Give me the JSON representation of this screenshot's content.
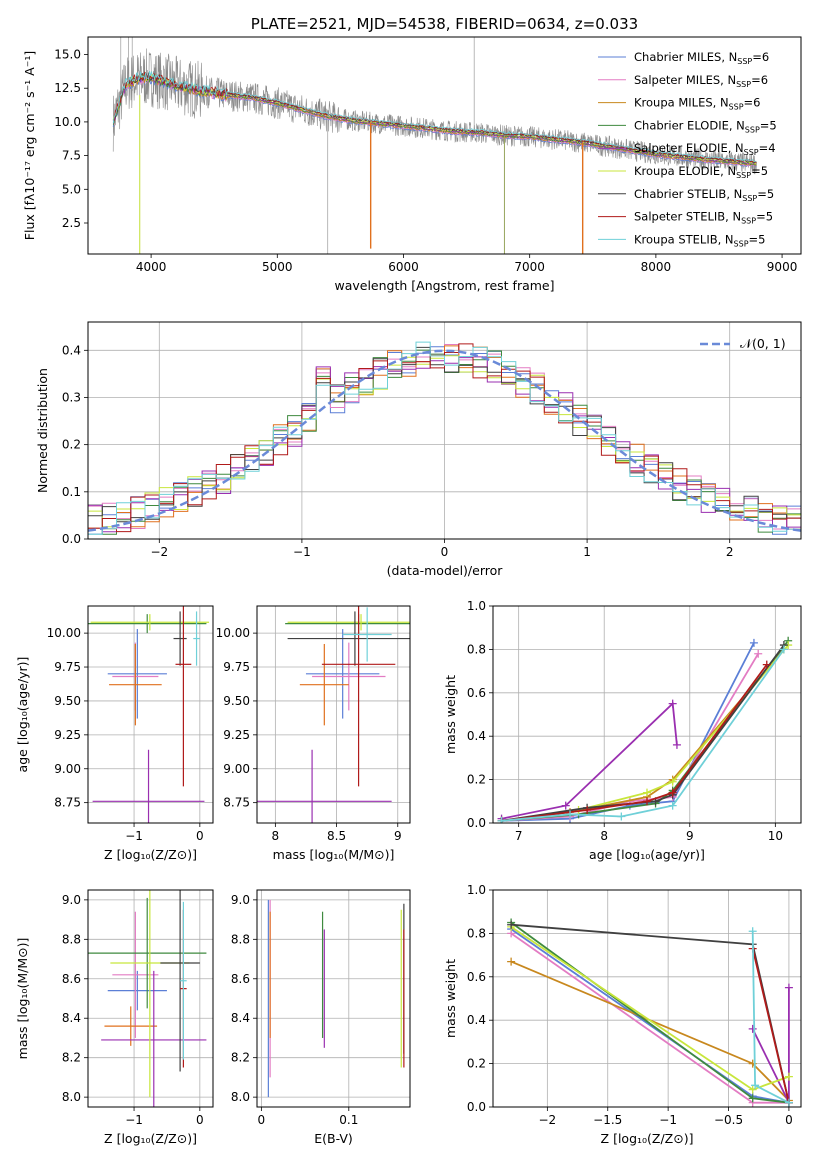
{
  "chart_data": [
    {
      "id": "spectrum",
      "type": "line",
      "title": "PLATE=2521, MJD=54538, FIBERID=0634, z=0.033",
      "xlabel": "wavelength [Angstrom, rest frame]",
      "ylabel": "Flux [fλ10⁻¹⁷ erg cm⁻² s⁻¹ A⁻¹]",
      "xlim": [
        3500,
        9150
      ],
      "ylim": [
        0.2,
        16.3
      ],
      "xticks": [
        4000,
        5000,
        6000,
        7000,
        8000,
        9000
      ],
      "yticks": [
        2.5,
        5.0,
        7.5,
        10.0,
        12.5,
        15.0
      ],
      "grid": false,
      "legend_position": "top-right",
      "legend": [
        {
          "name": "Chabrier MILES",
          "nssp": "6",
          "color": "#5b7fd6"
        },
        {
          "name": "Salpeter MILES",
          "nssp": "6",
          "color": "#e37cc3"
        },
        {
          "name": "Kroupa MILES",
          "nssp": "6",
          "color": "#c8881e"
        },
        {
          "name": "Chabrier ELODIE",
          "nssp": "5",
          "color": "#3f8a3f"
        },
        {
          "name": "Salpeter ELODIE",
          "nssp": "4",
          "color": "#9a2fb0"
        },
        {
          "name": "Kroupa ELODIE",
          "nssp": "5",
          "color": "#c8e63c"
        },
        {
          "name": "Chabrier STELIB",
          "nssp": "5",
          "color": "#404040"
        },
        {
          "name": "Salpeter STELIB",
          "nssp": "5",
          "color": "#b01a1a"
        },
        {
          "name": "Kroupa STELIB",
          "nssp": "5",
          "color": "#6fd0d8"
        }
      ],
      "model_x": [
        3700,
        3800,
        3900,
        4000,
        4200,
        4400,
        4600,
        4800,
        5000,
        5200,
        5400,
        5600,
        5800,
        6000,
        6200,
        6400,
        6600,
        6800,
        7000,
        7200,
        7400,
        7600,
        7800,
        8000,
        8200,
        8400,
        8600,
        8800
      ],
      "model_y": [
        10.0,
        12.8,
        13.2,
        13.3,
        12.7,
        12.3,
        12.0,
        11.8,
        11.4,
        10.9,
        10.4,
        10.1,
        9.9,
        9.7,
        9.5,
        9.3,
        9.2,
        9.0,
        8.9,
        8.7,
        8.5,
        8.2,
        7.9,
        7.6,
        7.4,
        7.2,
        7.05,
        6.9
      ]
    },
    {
      "id": "residuals",
      "type": "line",
      "xlabel": "(data-model)/error",
      "ylabel": "Normed distribution",
      "xlim": [
        -2.5,
        2.5
      ],
      "ylim": [
        0,
        0.46
      ],
      "xticks": [
        -2,
        -1,
        0,
        1,
        2
      ],
      "yticks": [
        0.0,
        0.1,
        0.2,
        0.3,
        0.4
      ],
      "grid": true,
      "legend_position": "top-right",
      "legend": [
        {
          "name": "𝒩(0, 1)",
          "color": "#6a8ad8"
        }
      ]
    },
    {
      "id": "age-vs-Z",
      "type": "scatter",
      "xlabel": "Z [log₁₀(Z/Z⊙)]",
      "ylabel": "age  [log₁₀(age/yr)]",
      "xlim": [
        -1.7,
        0.2
      ],
      "ylim": [
        8.6,
        10.2
      ],
      "xticks": [
        -1,
        0
      ],
      "yticks": [
        8.75,
        9.0,
        9.25,
        9.5,
        9.75,
        10.0
      ],
      "grid": true,
      "points": [
        {
          "x": -0.95,
          "y": 9.7,
          "xerr": 0.45,
          "yerr": 0.33
        },
        {
          "x": -0.98,
          "y": 9.68,
          "xerr": 0.35,
          "yerr": 0.25
        },
        {
          "x": -0.98,
          "y": 9.62,
          "xerr": 0.4,
          "yerr": 0.3
        },
        {
          "x": -0.8,
          "y": 10.07,
          "xerr": 0.9,
          "yerr": 0.07
        },
        {
          "x": -0.78,
          "y": 8.76,
          "xerr": 0.85,
          "yerr": 0.38
        },
        {
          "x": -0.76,
          "y": 10.08,
          "xerr": 0.9,
          "yerr": 0.06
        },
        {
          "x": -0.3,
          "y": 9.96,
          "xerr": 0.1,
          "yerr": 0.2
        },
        {
          "x": -0.25,
          "y": 9.77,
          "xerr": 0.12,
          "yerr": 0.9
        },
        {
          "x": -0.05,
          "y": 9.96,
          "xerr": 0.05,
          "yerr": 0.2
        }
      ]
    },
    {
      "id": "age-vs-mass",
      "type": "scatter",
      "xlabel": "mass [log₁₀(M/M⊙)]",
      "ylabel": "",
      "xlim": [
        7.85,
        9.1
      ],
      "ylim": [
        8.6,
        10.2
      ],
      "xticks": [
        8.0,
        8.5,
        9.0
      ],
      "yticks": [
        8.75,
        9.0,
        9.25,
        9.5,
        9.75,
        10.0
      ],
      "grid": true,
      "points": [
        {
          "x": 8.55,
          "y": 9.7,
          "xerr": 0.3,
          "yerr": 0.33
        },
        {
          "x": 8.6,
          "y": 9.68,
          "xerr": 0.3,
          "yerr": 0.25
        },
        {
          "x": 8.4,
          "y": 9.62,
          "xerr": 0.2,
          "yerr": 0.3
        },
        {
          "x": 8.68,
          "y": 10.07,
          "xerr": 0.6,
          "yerr": 0.07
        },
        {
          "x": 8.3,
          "y": 8.76,
          "xerr": 0.65,
          "yerr": 0.38
        },
        {
          "x": 8.7,
          "y": 10.08,
          "xerr": 0.6,
          "yerr": 0.06
        },
        {
          "x": 8.65,
          "y": 9.96,
          "xerr": 0.55,
          "yerr": 0.2
        },
        {
          "x": 8.68,
          "y": 9.77,
          "xerr": 0.3,
          "yerr": 0.9
        },
        {
          "x": 8.75,
          "y": 9.99,
          "xerr": 0.2,
          "yerr": 0.2
        }
      ]
    },
    {
      "id": "weight-vs-age",
      "type": "line",
      "xlabel": "age  [log₁₀(age/yr)]",
      "ylabel": "mass weight",
      "xlim": [
        6.7,
        10.3
      ],
      "ylim": [
        0.0,
        1.0
      ],
      "xticks": [
        7,
        8,
        9,
        10
      ],
      "yticks": [
        0.0,
        0.2,
        0.4,
        0.6,
        0.8,
        1.0
      ],
      "grid": true,
      "series": [
        {
          "color": "#5b7fd6",
          "x": [
            6.8,
            7.6,
            8.3,
            8.8,
            9.75
          ],
          "y": [
            0.01,
            0.02,
            0.08,
            0.1,
            0.83
          ]
        },
        {
          "color": "#e37cc3",
          "x": [
            6.8,
            7.6,
            8.3,
            8.8,
            9.8
          ],
          "y": [
            0.01,
            0.03,
            0.1,
            0.12,
            0.78
          ]
        },
        {
          "color": "#c8881e",
          "x": [
            6.8,
            7.6,
            8.5,
            8.8,
            10.1
          ],
          "y": [
            0.01,
            0.05,
            0.12,
            0.2,
            0.8
          ]
        },
        {
          "color": "#3f8a3f",
          "x": [
            6.8,
            7.7,
            8.6,
            8.8,
            10.15
          ],
          "y": [
            0.01,
            0.04,
            0.09,
            0.15,
            0.84
          ]
        },
        {
          "color": "#9a2fb0",
          "x": [
            6.8,
            7.55,
            8.8,
            8.85
          ],
          "y": [
            0.02,
            0.08,
            0.55,
            0.36
          ]
        },
        {
          "color": "#c8e63c",
          "x": [
            6.8,
            7.7,
            8.5,
            8.8,
            10.15
          ],
          "y": [
            0.01,
            0.06,
            0.14,
            0.19,
            0.82
          ]
        },
        {
          "color": "#404040",
          "x": [
            6.8,
            7.8,
            8.6,
            8.8,
            10.1
          ],
          "y": [
            0.01,
            0.07,
            0.1,
            0.13,
            0.82
          ]
        },
        {
          "color": "#b01a1a",
          "x": [
            6.8,
            7.8,
            8.5,
            8.8,
            9.9
          ],
          "y": [
            0.01,
            0.06,
            0.1,
            0.14,
            0.73
          ]
        },
        {
          "color": "#6fd0d8",
          "x": [
            6.8,
            7.6,
            8.2,
            8.8,
            10.1
          ],
          "y": [
            0.01,
            0.04,
            0.03,
            0.08,
            0.8
          ]
        }
      ]
    },
    {
      "id": "mass-vs-Z",
      "type": "scatter",
      "xlabel": "Z [log₁₀(Z/Z⊙)]",
      "ylabel": "mass [log₁₀(M/M⊙)]",
      "xlim": [
        -1.7,
        0.2
      ],
      "ylim": [
        7.95,
        9.05
      ],
      "xticks": [
        -1,
        0
      ],
      "yticks": [
        8.0,
        8.2,
        8.4,
        8.6,
        8.8,
        9.0
      ],
      "grid": true,
      "points": [
        {
          "x": -0.95,
          "y": 8.54,
          "xerr": 0.45,
          "yerr": 0.1
        },
        {
          "x": -0.98,
          "y": 8.62,
          "xerr": 0.35,
          "yerr": 0.32
        },
        {
          "x": -1.05,
          "y": 8.36,
          "xerr": 0.4,
          "yerr": 0.1
        },
        {
          "x": -0.8,
          "y": 8.73,
          "xerr": 0.9,
          "yerr": 0.28
        },
        {
          "x": -0.7,
          "y": 8.29,
          "xerr": 0.8,
          "yerr": 0.35
        },
        {
          "x": -0.76,
          "y": 8.68,
          "xerr": 0.6,
          "yerr": 0.68
        },
        {
          "x": -0.3,
          "y": 8.68,
          "xerr": 0.3,
          "yerr": 0.55
        },
        {
          "x": -0.25,
          "y": 8.55,
          "xerr": 0.05,
          "yerr": 0.4
        },
        {
          "x": -0.25,
          "y": 8.59,
          "xerr": 0.05,
          "yerr": 0.4
        }
      ]
    },
    {
      "id": "mass-vs-EBV",
      "type": "scatter",
      "xlabel": "E(B-V)",
      "ylabel": "",
      "xlim": [
        -0.005,
        0.17
      ],
      "ylim": [
        7.95,
        9.05
      ],
      "xticks": [
        0.0,
        0.1
      ],
      "yticks": [
        8.0,
        8.2,
        8.4,
        8.6,
        8.8,
        9.0
      ],
      "grid": true,
      "points": [
        {
          "x": 0.008,
          "y": 8.5,
          "xerr": 0,
          "yerr": 0.5
        },
        {
          "x": 0.01,
          "y": 8.55,
          "xerr": 0,
          "yerr": 0.45
        },
        {
          "x": 0.01,
          "y": 8.62,
          "xerr": 0,
          "yerr": 0.32
        },
        {
          "x": 0.07,
          "y": 8.62,
          "xerr": 0,
          "yerr": 0.32
        },
        {
          "x": 0.072,
          "y": 8.55,
          "xerr": 0,
          "yerr": 0.3
        },
        {
          "x": 0.16,
          "y": 8.55,
          "xerr": 0,
          "yerr": 0.4
        },
        {
          "x": 0.163,
          "y": 8.6,
          "xerr": 0,
          "yerr": 0.38
        },
        {
          "x": 0.163,
          "y": 8.5,
          "xerr": 0,
          "yerr": 0.35
        }
      ]
    },
    {
      "id": "weight-vs-Z",
      "type": "line",
      "xlabel": "Z [log₁₀(Z/Z⊙)]",
      "ylabel": "mass weight",
      "xlim": [
        -2.45,
        0.1
      ],
      "ylim": [
        0.0,
        1.0
      ],
      "xticks": [
        -2.0,
        -1.5,
        -1.0,
        -0.5,
        0.0
      ],
      "yticks": [
        0.0,
        0.2,
        0.4,
        0.6,
        0.8,
        1.0
      ],
      "grid": true,
      "series": [
        {
          "color": "#5b7fd6",
          "x": [
            -2.3,
            -0.3,
            0.0
          ],
          "y": [
            0.82,
            0.05,
            0.02
          ]
        },
        {
          "color": "#e37cc3",
          "x": [
            -2.3,
            -0.3,
            0.0
          ],
          "y": [
            0.8,
            0.02,
            0.02
          ]
        },
        {
          "color": "#c8881e",
          "x": [
            -2.3,
            -0.3,
            0.0
          ],
          "y": [
            0.67,
            0.2,
            0.03
          ]
        },
        {
          "color": "#3f8a3f",
          "x": [
            -2.3,
            -0.3,
            0.0
          ],
          "y": [
            0.85,
            0.04,
            0.02
          ]
        },
        {
          "color": "#9a2fb0",
          "x": [
            -0.3,
            0.0,
            0.0
          ],
          "y": [
            0.36,
            0.02,
            0.55
          ]
        },
        {
          "color": "#c8e63c",
          "x": [
            -2.3,
            -0.3,
            0.0
          ],
          "y": [
            0.83,
            0.08,
            0.14
          ]
        },
        {
          "color": "#404040",
          "x": [
            -2.3,
            -0.3,
            0.0
          ],
          "y": [
            0.84,
            0.75,
            0.02
          ]
        },
        {
          "color": "#b01a1a",
          "x": [
            -0.3,
            0.0
          ],
          "y": [
            0.73,
            0.02
          ]
        },
        {
          "color": "#6fd0d8",
          "x": [
            -0.3,
            -0.28,
            0.0
          ],
          "y": [
            0.81,
            0.1,
            0.02
          ]
        }
      ]
    }
  ]
}
